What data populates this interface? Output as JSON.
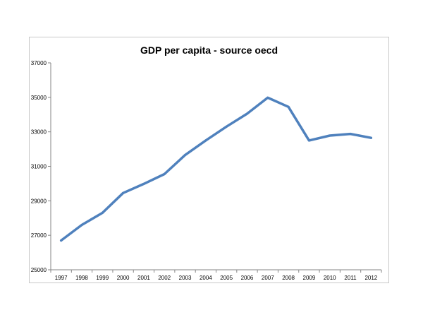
{
  "chart_data": {
    "type": "line",
    "title": "GDP per capita - source oecd",
    "xlabel": "",
    "ylabel": "",
    "categories": [
      "1997",
      "1998",
      "1999",
      "2000",
      "2001",
      "2002",
      "2003",
      "2004",
      "2005",
      "2006",
      "2007",
      "2008",
      "2009",
      "2010",
      "2011",
      "2012"
    ],
    "series": [
      {
        "name": "GDP per capita",
        "values": [
          26700,
          27600,
          28300,
          29450,
          29980,
          30550,
          31650,
          32500,
          33300,
          34050,
          34980,
          34450,
          32500,
          32780,
          32880,
          32650
        ]
      }
    ],
    "ylim": [
      25000,
      37000
    ],
    "yticks": [
      "25000",
      "27000",
      "29000",
      "31000",
      "33000",
      "35000",
      "37000"
    ],
    "grid": false,
    "legend": "none",
    "colors": {
      "line": "#4f81bd",
      "axis": "#868686"
    }
  }
}
